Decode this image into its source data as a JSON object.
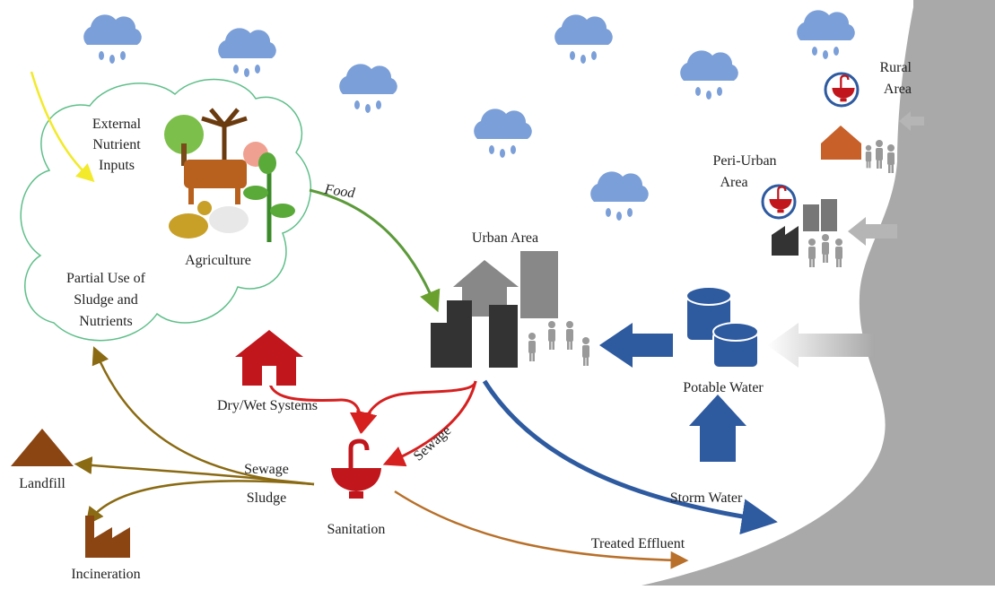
{
  "labels": {
    "external_nutrient_inputs": [
      "External",
      "Nutrient",
      "Inputs"
    ],
    "agriculture": [
      "Agriculture"
    ],
    "food": [
      "Food"
    ],
    "partial_use": [
      "Partial Use of",
      "Sludge and",
      "Nutrients"
    ],
    "urban_area": [
      "Urban Area"
    ],
    "dry_wet_systems": [
      "Dry/Wet Systems"
    ],
    "sewage_pipe": [
      "Sewage"
    ],
    "sewage": [
      "Sewage"
    ],
    "sludge": [
      "Sludge"
    ],
    "sanitation": [
      "Sanitation"
    ],
    "landfill": [
      "Landfill"
    ],
    "incineration": [
      "Incineration"
    ],
    "storm_water": [
      "Storm Water"
    ],
    "treated_effluent": [
      "Treated Effluent"
    ],
    "potable_water": [
      "Potable Water"
    ],
    "rural_area": [
      "Rural",
      "Area"
    ],
    "peri_urban_area": [
      "Peri-Urban",
      "Area"
    ]
  }
}
